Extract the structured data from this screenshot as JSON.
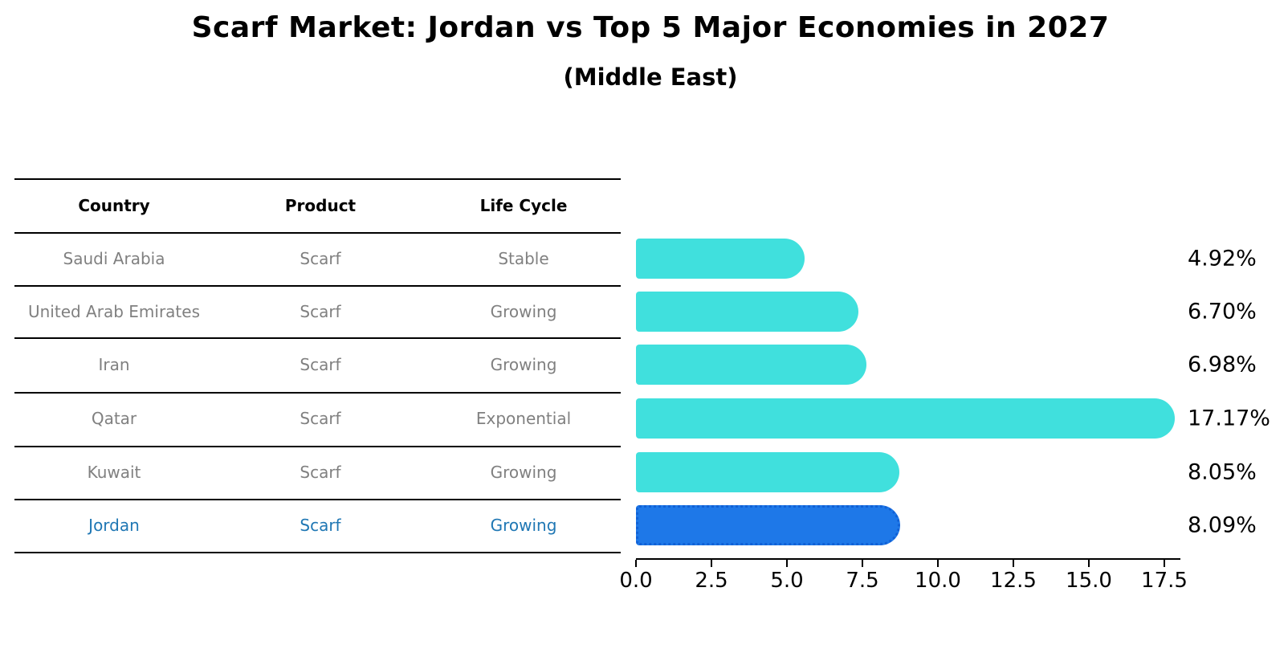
{
  "title": "Scarf Market: Jordan vs Top 5 Major Economies in 2027",
  "subtitle": "(Middle East)",
  "table": {
    "headers": [
      "Country",
      "Product",
      "Life Cycle"
    ],
    "rows": [
      {
        "country": "Saudi Arabia",
        "product": "Scarf",
        "life_cycle": "Stable",
        "highlight": false
      },
      {
        "country": "United Arab Emirates",
        "product": "Scarf",
        "life_cycle": "Growing",
        "highlight": false
      },
      {
        "country": "Iran",
        "product": "Scarf",
        "life_cycle": "Growing",
        "highlight": false
      },
      {
        "country": "Qatar",
        "product": "Scarf",
        "life_cycle": "Exponential",
        "highlight": false
      },
      {
        "country": "Kuwait",
        "product": "Scarf",
        "life_cycle": "Growing",
        "highlight": false
      },
      {
        "country": "Jordan",
        "product": "Scarf",
        "life_cycle": "Growing",
        "highlight": true
      }
    ]
  },
  "chart_data": {
    "type": "bar",
    "orientation": "horizontal",
    "title": "Scarf Market: Jordan vs Top 5 Major Economies in 2027 (Middle East)",
    "categories": [
      "Saudi Arabia",
      "United Arab Emirates",
      "Iran",
      "Qatar",
      "Kuwait",
      "Jordan"
    ],
    "values": [
      4.92,
      6.7,
      6.98,
      17.17,
      8.05,
      8.09
    ],
    "value_labels": [
      "4.92%",
      "6.70%",
      "6.98%",
      "17.17%",
      "8.05%",
      "8.09%"
    ],
    "unit": "%",
    "xlabel": "",
    "ylabel": "",
    "xlim": [
      0,
      18
    ],
    "x_ticks": [
      "0.0",
      "2.5",
      "5.0",
      "7.5",
      "10.0",
      "12.5",
      "15.0",
      "17.5"
    ],
    "grid": false,
    "legend": "none",
    "highlight_index": 5,
    "bar_color": "#40E0DD",
    "highlight_bar_color": "#1E78E8",
    "highlight_border_color": "#1161d6",
    "highlight_text_color": "#1f77b4",
    "row_text_color": "#808080"
  }
}
